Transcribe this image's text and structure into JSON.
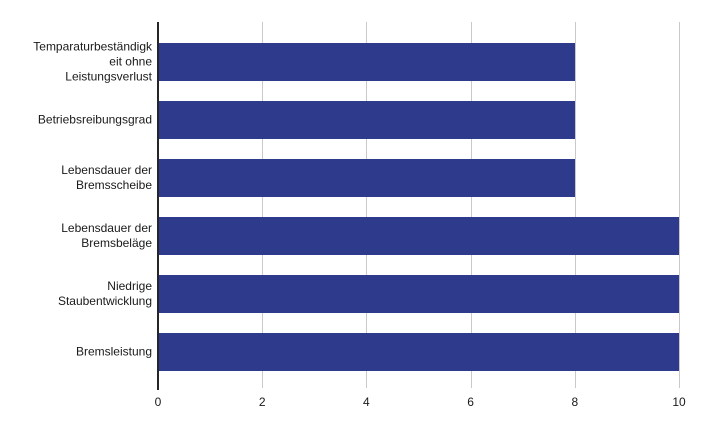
{
  "chart_data": {
    "type": "bar",
    "orientation": "horizontal",
    "title": "",
    "categories": [
      "Temparaturbeständigk\neit ohne\nLeistungsverlust",
      "Betriebsreibungsgrad",
      "Lebensdauer der\nBremsscheibe",
      "Lebensdauer der\nBremsbeläge",
      "Niedrige\nStaubentwicklung",
      "Bremsleistung"
    ],
    "values": [
      8,
      8,
      8,
      10,
      10,
      10
    ],
    "x_tick_labels": [
      "0",
      "2",
      "4",
      "6",
      "8",
      "10"
    ],
    "x_tick_values": [
      0,
      2,
      4,
      6,
      8,
      10
    ],
    "xlim": [
      0,
      10
    ],
    "xlabel": "",
    "ylabel": "",
    "grid": "vertical-gridlines-on",
    "legend_position": "none",
    "colors": {
      "bar": "#2e3a8b",
      "gridline": "#c9c9c9",
      "axis": "#262626",
      "text": "#1a1a1a",
      "background": "#ffffff"
    }
  }
}
